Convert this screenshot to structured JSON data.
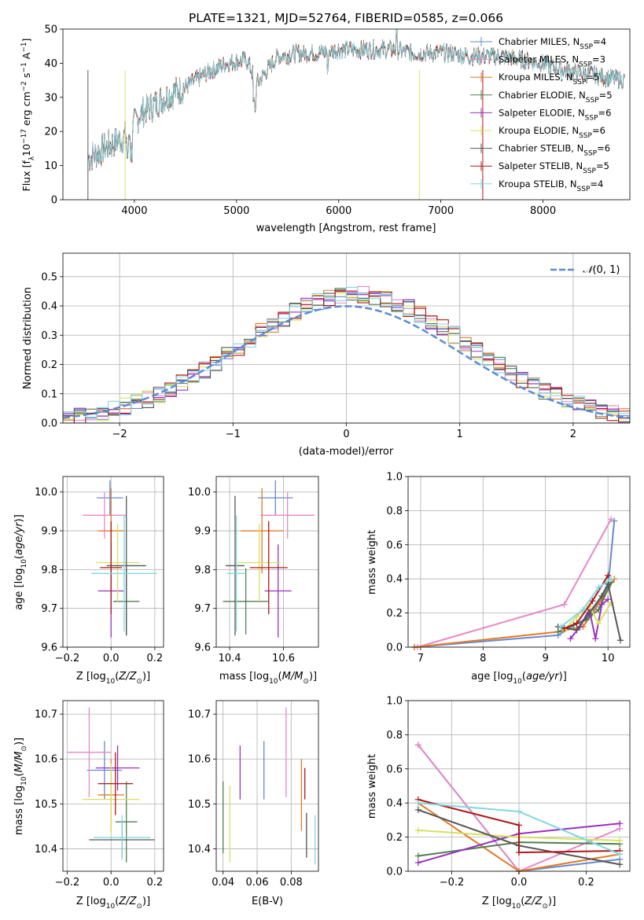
{
  "chart_data": [
    {
      "id": "spectrum",
      "type": "line",
      "title": "PLATE=1321, MJD=52764, FIBERID=0585, z=0.066",
      "xlabel": "wavelength [Angstrom, rest frame]",
      "ylabel": "Flux [f_λ 10^{-17} erg cm^{-2} s^{-1} A^{-1}]",
      "xlim": [
        3300,
        8850
      ],
      "ylim": [
        0,
        50
      ],
      "xticks": [
        4000,
        5000,
        6000,
        7000,
        8000
      ],
      "yticks": [
        0,
        10,
        20,
        30,
        40,
        50
      ],
      "legend_position": "top-right",
      "grid": false,
      "series": [
        {
          "name": "Chabrier MILES, N_SSP=4",
          "label_base": "Chabrier MILES, N",
          "label_n": "=4",
          "color": "#6688cc"
        },
        {
          "name": "Salpeter MILES, N_SSP=3",
          "label_base": "Salpeter MILES, N",
          "label_n": "=3",
          "color": "#e688c8"
        },
        {
          "name": "Kroupa MILES, N_SSP=5",
          "label_base": "Kroupa MILES, N",
          "label_n": "=5",
          "color": "#e07b2a"
        },
        {
          "name": "Chabrier ELODIE, N_SSP=5",
          "label_base": "Chabrier ELODIE, N",
          "label_n": "=5",
          "color": "#4f7f4f"
        },
        {
          "name": "Salpeter ELODIE, N_SSP=6",
          "label_base": "Salpeter ELODIE, N",
          "label_n": "=6",
          "color": "#9a30c0"
        },
        {
          "name": "Kroupa ELODIE, N_SSP=6",
          "label_base": "Kroupa ELODIE, N",
          "label_n": "=6",
          "color": "#d8e060"
        },
        {
          "name": "Chabrier STELIB, N_SSP=6",
          "label_base": "Chabrier STELIB, N",
          "label_n": "=6",
          "color": "#555555"
        },
        {
          "name": "Salpeter STELIB, N_SSP=5",
          "label_base": "Salpeter STELIB, N",
          "label_n": "=5",
          "color": "#b01818"
        },
        {
          "name": "Kroupa STELIB, N_SSP=4",
          "label_base": "Kroupa STELIB, N",
          "label_n": "=4",
          "color": "#80d8e0"
        }
      ],
      "data_envelope": {
        "x": [
          3550,
          3700,
          3880,
          3950,
          4050,
          4200,
          4350,
          4500,
          4700,
          4900,
          5100,
          5200,
          5400,
          5600,
          5800,
          6000,
          6200,
          6400,
          6560,
          6700,
          6900,
          7100,
          7300,
          7450,
          7600,
          7800,
          8000,
          8200,
          8400,
          8600,
          8800
        ],
        "y": [
          12,
          15,
          18,
          19,
          25,
          28,
          31,
          33,
          37,
          40,
          41,
          34,
          42,
          43,
          43,
          44,
          44,
          44,
          44,
          43,
          43,
          43,
          42,
          42,
          42,
          41,
          40,
          38,
          37,
          36,
          35
        ]
      }
    },
    {
      "id": "residuals",
      "type": "histogram",
      "xlabel": "(data-model)/error",
      "ylabel": "Normed distribution",
      "xlim": [
        -2.5,
        2.5
      ],
      "ylim": [
        0,
        0.58
      ],
      "xticks": [
        -2,
        -1,
        0,
        1,
        2
      ],
      "yticks": [
        0.0,
        0.1,
        0.2,
        0.3,
        0.4,
        0.5
      ],
      "grid": true,
      "legend": {
        "label": "N(0, 1)",
        "position": "top-right",
        "style": "dashed",
        "color": "#5b8bd6"
      },
      "bin_width": 0.1
    },
    {
      "id": "age_vs_Z",
      "type": "errorbar",
      "xlabel": "Z [log10(Z/Z_sun)]",
      "ylabel": "age [log10(age/yr)]",
      "xlim": [
        -0.22,
        0.24
      ],
      "ylim": [
        9.6,
        10.04
      ],
      "xticks": [
        -0.2,
        0.0,
        0.2
      ],
      "yticks": [
        9.6,
        9.7,
        9.8,
        9.9,
        10.0
      ],
      "grid": true,
      "points": [
        {
          "color": "#6688cc",
          "x": -0.005,
          "xerr": 0.06,
          "y": 9.985,
          "yerr": 0.045
        },
        {
          "color": "#e688c8",
          "x": -0.03,
          "xerr": 0.1,
          "y": 9.94,
          "yerr": 0.06
        },
        {
          "color": "#e07b2a",
          "x": 0.0,
          "xerr": 0.06,
          "y": 9.9,
          "yerr": 0.11
        },
        {
          "color": "#4f7f4f",
          "x": 0.07,
          "xerr": 0.06,
          "y": 9.718,
          "yerr": 0.085
        },
        {
          "color": "#9a30c0",
          "x": 0.0,
          "xerr": 0.06,
          "y": 9.745,
          "yerr": 0.12
        },
        {
          "color": "#d8e060",
          "x": 0.03,
          "xerr": 0.1,
          "y": 9.818,
          "yerr": 0.1
        },
        {
          "color": "#555555",
          "x": 0.07,
          "xerr": 0.09,
          "y": 9.81,
          "yerr": 0.18
        },
        {
          "color": "#b01818",
          "x": 0.0,
          "xerr": 0.05,
          "y": 9.805,
          "yerr": 0.12
        },
        {
          "color": "#80d8e0",
          "x": 0.06,
          "xerr": 0.15,
          "y": 9.79,
          "yerr": 0.15
        }
      ]
    },
    {
      "id": "age_vs_mass",
      "type": "errorbar",
      "xlabel": "mass [log10(M/M_sun)]",
      "ylabel": "",
      "xlim": [
        10.35,
        10.73
      ],
      "ylim": [
        9.6,
        10.04
      ],
      "xticks": [
        10.4,
        10.6
      ],
      "yticks": [
        9.6,
        9.7,
        9.8,
        9.9,
        10.0
      ],
      "grid": true,
      "points": [
        {
          "color": "#6688cc",
          "x": 10.57,
          "xerr": 0.065,
          "y": 9.985,
          "yerr": 0.045
        },
        {
          "color": "#e688c8",
          "x": 10.615,
          "xerr": 0.1,
          "y": 9.94,
          "yerr": 0.06
        },
        {
          "color": "#e07b2a",
          "x": 10.52,
          "xerr": 0.08,
          "y": 9.9,
          "yerr": 0.11
        },
        {
          "color": "#4f7f4f",
          "x": 10.46,
          "xerr": 0.085,
          "y": 9.718,
          "yerr": 0.085
        },
        {
          "color": "#9a30c0",
          "x": 10.58,
          "xerr": 0.05,
          "y": 9.745,
          "yerr": 0.12
        },
        {
          "color": "#d8e060",
          "x": 10.51,
          "xerr": 0.08,
          "y": 9.818,
          "yerr": 0.1
        },
        {
          "color": "#555555",
          "x": 10.42,
          "xerr": 0.035,
          "y": 9.81,
          "yerr": 0.18
        },
        {
          "color": "#b01818",
          "x": 10.545,
          "xerr": 0.07,
          "y": 9.805,
          "yerr": 0.12
        },
        {
          "color": "#80d8e0",
          "x": 10.425,
          "xerr": 0.035,
          "y": 9.79,
          "yerr": 0.15
        }
      ]
    },
    {
      "id": "weight_vs_age",
      "type": "line",
      "xlabel": "age [log10(age/yr)]",
      "ylabel": "mass weight",
      "xlim": [
        6.8,
        10.35
      ],
      "ylim": [
        0.0,
        1.0
      ],
      "xticks": [
        7,
        8,
        9,
        10
      ],
      "yticks": [
        0.0,
        0.2,
        0.4,
        0.6,
        0.8,
        1.0
      ],
      "grid": true,
      "series": [
        {
          "color": "#6688cc",
          "x": [
            6.9,
            9.2,
            9.7,
            10.0,
            10.1
          ],
          "y": [
            0.0,
            0.07,
            0.18,
            0.35,
            0.74
          ]
        },
        {
          "color": "#e688c8",
          "x": [
            6.95,
            9.3,
            10.05
          ],
          "y": [
            0.0,
            0.25,
            0.75
          ]
        },
        {
          "color": "#e07b2a",
          "x": [
            6.9,
            9.2,
            9.6,
            9.9,
            10.1
          ],
          "y": [
            0.0,
            0.09,
            0.12,
            0.28,
            0.4
          ]
        },
        {
          "color": "#4f7f4f",
          "x": [
            9.2,
            9.45,
            9.65,
            9.85,
            10.05
          ],
          "y": [
            0.09,
            0.13,
            0.16,
            0.22,
            0.38
          ]
        },
        {
          "color": "#9a30c0",
          "x": [
            9.4,
            9.55,
            9.7,
            9.8,
            9.9,
            10.0
          ],
          "y": [
            0.05,
            0.12,
            0.22,
            0.05,
            0.25,
            0.28
          ]
        },
        {
          "color": "#d8e060",
          "x": [
            9.3,
            9.5,
            9.7,
            9.85,
            10.05
          ],
          "y": [
            0.1,
            0.18,
            0.24,
            0.14,
            0.26
          ]
        },
        {
          "color": "#555555",
          "x": [
            9.2,
            9.5,
            9.7,
            9.9,
            10.0,
            10.2
          ],
          "y": [
            0.12,
            0.1,
            0.2,
            0.3,
            0.37,
            0.04
          ]
        },
        {
          "color": "#b01818",
          "x": [
            9.3,
            9.5,
            9.75,
            10.0
          ],
          "y": [
            0.11,
            0.14,
            0.27,
            0.42
          ]
        },
        {
          "color": "#80d8e0",
          "x": [
            9.25,
            9.6,
            9.85,
            10.05
          ],
          "y": [
            0.12,
            0.22,
            0.35,
            0.4
          ]
        }
      ]
    },
    {
      "id": "mass_vs_Z",
      "type": "errorbar",
      "xlabel": "Z [log10(Z/Z_sun)]",
      "ylabel": "mass [log10(M/M_sun)]",
      "xlim": [
        -0.22,
        0.24
      ],
      "ylim": [
        10.35,
        10.73
      ],
      "xticks": [
        -0.2,
        0.0,
        0.2
      ],
      "yticks": [
        10.4,
        10.5,
        10.6,
        10.7
      ],
      "grid": true,
      "points": [
        {
          "color": "#6688cc",
          "x": -0.03,
          "xerr": 0.08,
          "y": 10.575,
          "yerr": 0.065
        },
        {
          "color": "#e688c8",
          "x": -0.1,
          "xerr": 0.1,
          "y": 10.615,
          "yerr": 0.1
        },
        {
          "color": "#e07b2a",
          "x": 0.0,
          "xerr": 0.06,
          "y": 10.52,
          "yerr": 0.08
        },
        {
          "color": "#4f7f4f",
          "x": 0.07,
          "xerr": 0.05,
          "y": 10.46,
          "yerr": 0.09
        },
        {
          "color": "#9a30c0",
          "x": 0.03,
          "xerr": 0.1,
          "y": 10.58,
          "yerr": 0.05
        },
        {
          "color": "#d8e060",
          "x": 0.0,
          "xerr": 0.13,
          "y": 10.51,
          "yerr": 0.08
        },
        {
          "color": "#555555",
          "x": 0.05,
          "xerr": 0.15,
          "y": 10.42,
          "yerr": 0.04
        },
        {
          "color": "#b01818",
          "x": 0.02,
          "xerr": 0.08,
          "y": 10.545,
          "yerr": 0.07
        },
        {
          "color": "#80d8e0",
          "x": 0.05,
          "xerr": 0.13,
          "y": 10.425,
          "yerr": 0.05
        }
      ]
    },
    {
      "id": "mass_vs_ebv",
      "type": "errorbar",
      "xlabel": "E(B-V)",
      "ylabel": "",
      "xlim": [
        0.036,
        0.096
      ],
      "ylim": [
        10.35,
        10.73
      ],
      "xticks": [
        0.04,
        0.06,
        0.08
      ],
      "yticks": [
        10.4,
        10.5,
        10.6,
        10.7
      ],
      "grid": true,
      "points": [
        {
          "color": "#6688cc",
          "x": 0.064,
          "y": 10.575,
          "yerr": 0.065
        },
        {
          "color": "#e688c8",
          "x": 0.077,
          "y": 10.615,
          "yerr": 0.1
        },
        {
          "color": "#e07b2a",
          "x": 0.086,
          "y": 10.52,
          "yerr": 0.08
        },
        {
          "color": "#4f7f4f",
          "x": 0.04,
          "y": 10.47,
          "yerr": 0.08
        },
        {
          "color": "#9a30c0",
          "x": 0.05,
          "y": 10.57,
          "yerr": 0.06
        },
        {
          "color": "#d8e060",
          "x": 0.044,
          "y": 10.455,
          "yerr": 0.085
        },
        {
          "color": "#555555",
          "x": 0.089,
          "y": 10.43,
          "yerr": 0.05
        },
        {
          "color": "#b01818",
          "x": 0.088,
          "y": 10.545,
          "yerr": 0.035
        },
        {
          "color": "#80d8e0",
          "x": 0.094,
          "y": 10.42,
          "yerr": 0.055
        }
      ]
    },
    {
      "id": "weight_vs_Z",
      "type": "line",
      "xlabel": "Z [log10(Z/Z_sun)]",
      "ylabel": "mass weight",
      "xlim": [
        -0.33,
        0.33
      ],
      "ylim": [
        0.0,
        1.0
      ],
      "xticks": [
        -0.2,
        0.0,
        0.2
      ],
      "yticks": [
        0.0,
        0.2,
        0.4,
        0.6,
        0.8,
        1.0
      ],
      "grid": true,
      "series": [
        {
          "color": "#6688cc",
          "x": [
            -0.3,
            0.0,
            0.3
          ],
          "y": [
            0.74,
            0.0,
            0.07
          ]
        },
        {
          "color": "#e688c8",
          "x": [
            -0.3,
            0.0,
            0.3
          ],
          "y": [
            0.74,
            0.0,
            0.25
          ]
        },
        {
          "color": "#e07b2a",
          "x": [
            -0.3,
            0.0,
            0.3
          ],
          "y": [
            0.4,
            0.0,
            0.1
          ]
        },
        {
          "color": "#4f7f4f",
          "x": [
            -0.3,
            0.0,
            0.3
          ],
          "y": [
            0.09,
            0.17,
            0.16
          ]
        },
        {
          "color": "#9a30c0",
          "x": [
            -0.3,
            0.0,
            0.3
          ],
          "y": [
            0.05,
            0.22,
            0.28
          ]
        },
        {
          "color": "#d8e060",
          "x": [
            -0.3,
            0.0,
            0.3
          ],
          "y": [
            0.24,
            0.2,
            0.18
          ]
        },
        {
          "color": "#555555",
          "x": [
            -0.3,
            0.0,
            0.3
          ],
          "y": [
            0.36,
            0.15,
            0.04
          ]
        },
        {
          "color": "#b01818",
          "x": [
            -0.3,
            0.0,
            0.0,
            0.3
          ],
          "y": [
            0.42,
            0.27,
            0.11,
            0.12
          ]
        },
        {
          "color": "#80d8e0",
          "x": [
            -0.3,
            0.0,
            0.3
          ],
          "y": [
            0.4,
            0.35,
            0.1
          ]
        }
      ]
    }
  ]
}
